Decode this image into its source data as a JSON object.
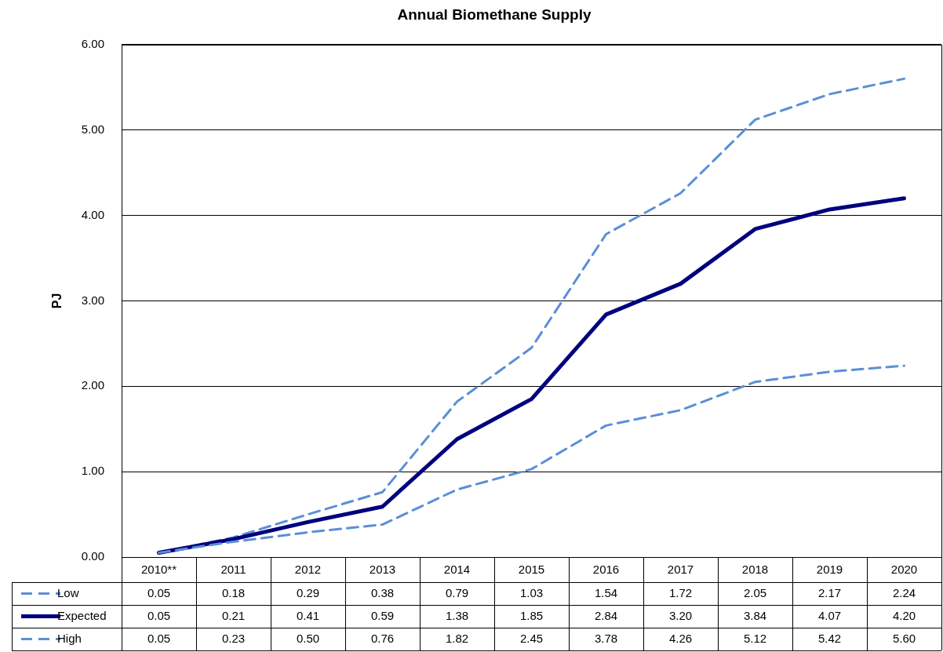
{
  "chart_data": {
    "type": "line",
    "title": "Annual Biomethane Supply",
    "ylabel": "PJ",
    "categories": [
      "2010**",
      "2011",
      "2012",
      "2013",
      "2014",
      "2015",
      "2016",
      "2017",
      "2018",
      "2019",
      "2020"
    ],
    "series": [
      {
        "name": "Low",
        "color": "#5b8fd6",
        "line_style": "dashed",
        "values": [
          0.05,
          0.18,
          0.29,
          0.38,
          0.79,
          1.03,
          1.54,
          1.72,
          2.05,
          2.17,
          2.24
        ],
        "value_labels": [
          "0.05",
          "0.18",
          "0.29",
          "0.38",
          "0.79",
          "1.03",
          "1.54",
          "1.72",
          "2.05",
          "2.17",
          "2.24"
        ]
      },
      {
        "name": "Expected",
        "color": "#00007f",
        "line_style": "solid",
        "values": [
          0.05,
          0.21,
          0.41,
          0.59,
          1.38,
          1.85,
          2.84,
          3.2,
          3.84,
          4.07,
          4.2
        ],
        "value_labels": [
          "0.05",
          "0.21",
          "0.41",
          "0.59",
          "1.38",
          "1.85",
          "2.84",
          "3.20",
          "3.84",
          "4.07",
          "4.20"
        ]
      },
      {
        "name": "High",
        "color": "#5b8fd6",
        "line_style": "dashed",
        "values": [
          0.05,
          0.23,
          0.5,
          0.76,
          1.82,
          2.45,
          3.78,
          4.26,
          5.12,
          5.42,
          5.6
        ],
        "value_labels": [
          "0.05",
          "0.23",
          "0.50",
          "0.76",
          "1.82",
          "2.45",
          "3.78",
          "4.26",
          "5.12",
          "5.42",
          "5.60"
        ]
      }
    ],
    "ylim": [
      0,
      6
    ],
    "yticks": [
      {
        "value": 0,
        "label": "0.00"
      },
      {
        "value": 1,
        "label": "1.00"
      },
      {
        "value": 2,
        "label": "2.00"
      },
      {
        "value": 3,
        "label": "3.00"
      },
      {
        "value": 4,
        "label": "4.00"
      },
      {
        "value": 5,
        "label": "5.00"
      },
      {
        "value": 6,
        "label": "6.00"
      }
    ],
    "grid": "y",
    "legend": "bottom left",
    "marker": "none"
  }
}
